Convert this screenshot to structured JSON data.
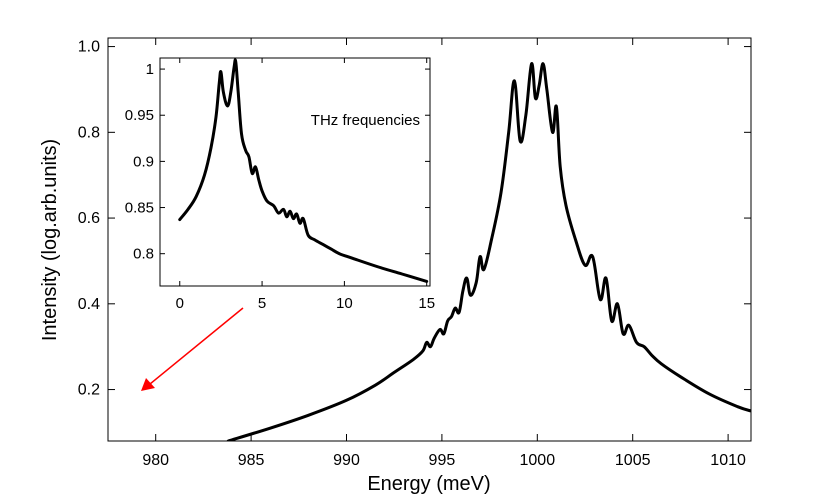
{
  "chart_data": [
    {
      "type": "line",
      "name": "main",
      "xlabel": "Energy (meV)",
      "ylabel": "Intensity (log.arb.units)",
      "xlim": [
        977.5,
        1011.2
      ],
      "ylim": [
        0.08,
        1.02
      ],
      "xticks": [
        980,
        985,
        990,
        995,
        1000,
        1005,
        1010
      ],
      "xtick_labels": [
        "980",
        "985",
        "990",
        "995",
        "1000",
        "1005",
        "1010"
      ],
      "yticks": [
        0.2,
        0.4,
        0.6,
        0.8,
        1.0
      ],
      "ytick_labels": [
        "0.2",
        "0.4",
        "0.6",
        "0.8",
        "1.0"
      ],
      "series": [
        {
          "name": "spectrum",
          "x": [
            983.8,
            986,
            988,
            990,
            991.5,
            992.5,
            993.5,
            994.0,
            994.2,
            994.4,
            994.6,
            994.9,
            995.1,
            995.3,
            995.5,
            995.7,
            995.9,
            996.1,
            996.3,
            996.5,
            996.8,
            997.0,
            997.2,
            997.6,
            998.1,
            998.5,
            998.8,
            999.1,
            999.4,
            999.7,
            999.9,
            1000.1,
            1000.3,
            1000.5,
            1000.8,
            1001.0,
            1001.2,
            1001.5,
            1002.0,
            1002.5,
            1002.9,
            1003.3,
            1003.6,
            1003.9,
            1004.2,
            1004.5,
            1004.8,
            1005.2,
            1005.6,
            1006.0,
            1006.5,
            1007.5,
            1009.0,
            1010.5,
            1011.2
          ],
          "values": [
            0.08,
            0.11,
            0.14,
            0.175,
            0.21,
            0.24,
            0.27,
            0.29,
            0.31,
            0.3,
            0.32,
            0.34,
            0.33,
            0.36,
            0.37,
            0.39,
            0.38,
            0.43,
            0.46,
            0.42,
            0.45,
            0.51,
            0.48,
            0.55,
            0.66,
            0.8,
            0.92,
            0.78,
            0.84,
            0.96,
            0.88,
            0.91,
            0.96,
            0.9,
            0.8,
            0.86,
            0.72,
            0.63,
            0.55,
            0.49,
            0.51,
            0.41,
            0.46,
            0.36,
            0.4,
            0.33,
            0.35,
            0.31,
            0.3,
            0.28,
            0.26,
            0.23,
            0.19,
            0.16,
            0.15
          ]
        }
      ]
    },
    {
      "type": "line",
      "name": "inset",
      "annotation": "THz frequencies",
      "xlim": [
        -1.2,
        15.2
      ],
      "ylim": [
        0.765,
        1.012
      ],
      "xticks": [
        0,
        5,
        10,
        15
      ],
      "xtick_labels": [
        "0",
        "5",
        "10",
        "15"
      ],
      "yticks": [
        0.8,
        0.85,
        0.9,
        0.95,
        1.0
      ],
      "ytick_labels": [
        "0.8",
        "0.85",
        "0.9",
        "0.95",
        "1"
      ],
      "series": [
        {
          "name": "spectrum-thz",
          "x": [
            0,
            0.5,
            1.0,
            1.5,
            1.9,
            2.2,
            2.4,
            2.5,
            2.65,
            2.9,
            3.1,
            3.3,
            3.4,
            3.55,
            3.75,
            4.0,
            4.2,
            4.4,
            4.6,
            4.8,
            5.0,
            5.3,
            5.7,
            6.0,
            6.3,
            6.5,
            6.7,
            6.9,
            7.1,
            7.3,
            7.5,
            7.8,
            8.2,
            8.7,
            9.2,
            9.7,
            10.5,
            12,
            13.5,
            15
          ],
          "values": [
            0.837,
            0.848,
            0.862,
            0.885,
            0.915,
            0.948,
            0.985,
            0.997,
            0.975,
            0.96,
            0.975,
            1.002,
            1.008,
            0.975,
            0.93,
            0.912,
            0.905,
            0.887,
            0.894,
            0.88,
            0.868,
            0.857,
            0.852,
            0.844,
            0.848,
            0.84,
            0.846,
            0.838,
            0.843,
            0.833,
            0.838,
            0.82,
            0.815,
            0.81,
            0.805,
            0.8,
            0.795,
            0.786,
            0.778,
            0.77
          ]
        }
      ]
    }
  ],
  "arrow_color": "#ff0000",
  "line_color": "#000000"
}
